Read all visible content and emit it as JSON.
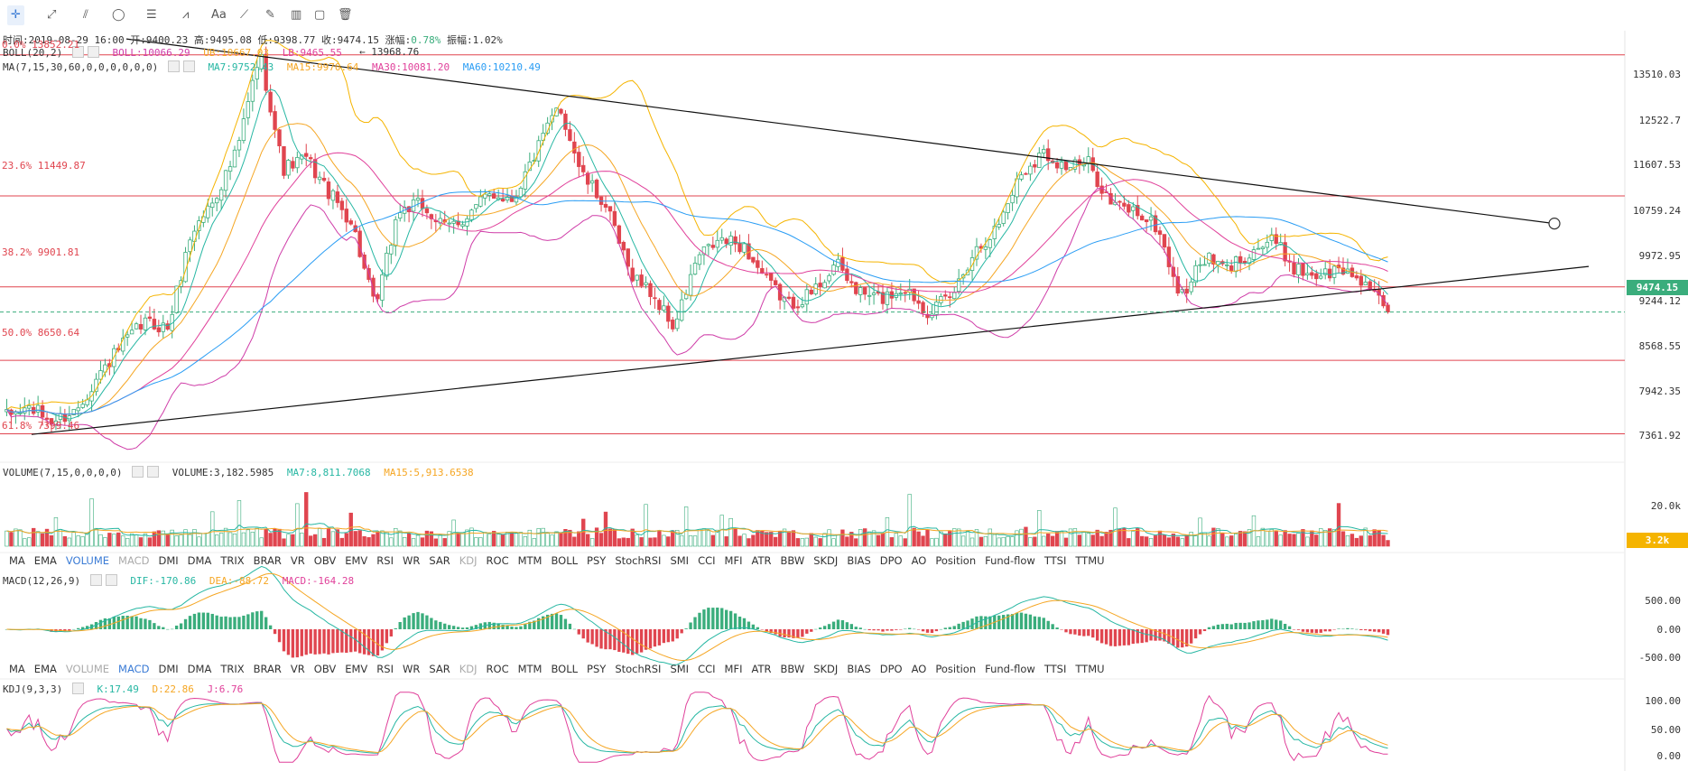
{
  "toolbar": {
    "items": [
      {
        "name": "crosshair-tool",
        "glyph": "✛",
        "active": true
      },
      {
        "name": "trendline-tool",
        "glyph": "⤢",
        "active": false
      },
      {
        "name": "parallel-line-tool",
        "glyph": "⫽",
        "active": false
      },
      {
        "name": "ellipse-tool",
        "glyph": "◯",
        "active": false
      },
      {
        "name": "fib-tool",
        "glyph": "☰",
        "active": false
      },
      {
        "name": "wave-tool",
        "glyph": "⩘",
        "active": false
      },
      {
        "name": "text-tool",
        "glyph": "Aa",
        "active": false
      },
      {
        "name": "ruler-tool",
        "glyph": "⟋",
        "active": false
      },
      {
        "name": "brush-tool",
        "glyph": "✎",
        "active": false
      },
      {
        "name": "measure-tool",
        "glyph": "▥",
        "active": false
      },
      {
        "name": "lock-tool",
        "glyph": "▢",
        "active": false
      },
      {
        "name": "trash-tool",
        "glyph": "🗑",
        "active": false
      }
    ]
  },
  "ohlc": {
    "time_label": "时间:",
    "time": "2019-08-29 16:00",
    "open_label": "开:",
    "open": "9400.23",
    "high_label": "高:",
    "high": "9495.08",
    "low_label": "低:",
    "low": "9398.77",
    "close_label": "收:",
    "close": "9474.15",
    "change_label": "涨幅:",
    "change": "0.78%",
    "amp_label": "振幅:",
    "amp": "1.02%"
  },
  "boll": {
    "label": "BOLL(20,2)",
    "boll": "BOLL:10066.29",
    "ub": "UB:10667.03",
    "lb": "LB:9465.55",
    "top_note": "13968.76"
  },
  "ma": {
    "label": "MA(7,15,30,60,0,0,0,0,0,0)",
    "ma7": "MA7:9752.43",
    "ma15": "MA15:9970.64",
    "ma30": "MA30:10081.20",
    "ma60": "MA60:10210.49"
  },
  "fib": [
    {
      "label": "0.0% 13852.21",
      "price": 13852.21
    },
    {
      "label": "23.6% 11449.87",
      "price": 11449.87
    },
    {
      "label": "38.2% 9901.81",
      "price": 9901.81
    },
    {
      "label": "50.0% 8650.64",
      "price": 8650.64
    },
    {
      "label": "61.8% 7399.46",
      "price": 7399.46
    }
  ],
  "current_price": "9474.15",
  "volume_panel": {
    "label": "VOLUME(7,15,0,0,0,0)",
    "volume": "VOLUME:3,182.5985",
    "ma7": "MA7:8,811.7068",
    "ma15": "MA15:5,913.6538",
    "current": "3.2k"
  },
  "macd_panel": {
    "label": "MACD(12,26,9)",
    "dif": "DIF:-170.86",
    "dea": "DEA:-88.72",
    "macd": "MACD:-164.28"
  },
  "kdj_panel": {
    "label": "KDJ(9,3,3)",
    "k": "K:17.49",
    "d": "D:22.86",
    "j": "J:6.76"
  },
  "indicator_tabs": [
    "MA",
    "EMA",
    "VOLUME",
    "MACD",
    "DMI",
    "DMA",
    "TRIX",
    "BRAR",
    "VR",
    "OBV",
    "EMV",
    "RSI",
    "WR",
    "SAR",
    "KDJ",
    "ROC",
    "MTM",
    "BOLL",
    "PSY",
    "StochRSI",
    "SMI",
    "CCI",
    "MFI",
    "ATR",
    "BBW",
    "SKDJ",
    "BIAS",
    "DPO",
    "AO",
    "Position",
    "Fund-flow",
    "TTSI",
    "TTMU"
  ],
  "tabs_row1_active": "VOLUME",
  "tabs_row2_active": "MACD",
  "tabs_disabled": [
    "MACD",
    "KDJ"
  ],
  "tabs_disabled_row2": [
    "VOLUME",
    "KDJ"
  ],
  "colors": {
    "up": "#3aad7c",
    "down": "#e0454f",
    "ma7": "#27b7a3",
    "ma15": "#f5a623",
    "ma30": "#e0409a",
    "ma60": "#2a9df4",
    "boll_band": "#f5b400",
    "boll_mid": "#cf3da8",
    "fib": "#e0454f",
    "trend": "#111111"
  },
  "chart_data": [
    {
      "type": "candlestick",
      "title": "",
      "y_ticks": [
        13510.03,
        12522.7,
        11607.53,
        10759.24,
        9972.95,
        9244.12,
        8568.55,
        7942.35,
        7361.92
      ],
      "ylim": [
        7330,
        14080
      ],
      "anchor_close": [
        7700,
        7850,
        7600,
        7800,
        8400,
        8900,
        9300,
        9200,
        10800,
        11400,
        12200,
        13900,
        11900,
        12100,
        11500,
        11000,
        9500,
        11200,
        11300,
        10900,
        11100,
        11500,
        11400,
        12200,
        13000,
        11800,
        11300,
        10200,
        9800,
        9200,
        10400,
        10700,
        10600,
        10000,
        9600,
        9800,
        10300,
        9800,
        9700,
        9900,
        9500,
        9700,
        10500,
        10900,
        11800,
        12200,
        11950,
        12000,
        11300,
        11200,
        10900,
        9700,
        10400,
        10200,
        10500,
        10700,
        10200,
        10100,
        10200,
        10000,
        9400
      ],
      "trendline_upper_start_close": 13968.76,
      "trendline_upper_end": 10980,
      "trendline_lower_start": 7390,
      "trendline_lower_end": 10250
    },
    {
      "type": "bar",
      "name": "VOLUME",
      "y_ticks": [
        "20.0k"
      ],
      "current": 3182.5985
    },
    {
      "type": "bar",
      "name": "MACD",
      "y_ticks": [
        "500.00",
        "0.00",
        "-500.00"
      ],
      "dif": -170.86,
      "dea": -88.72,
      "macd": -164.28
    },
    {
      "type": "line",
      "name": "KDJ",
      "y_ticks": [
        "100.00",
        "50.00",
        "0.00"
      ],
      "k": 17.49,
      "d": 22.86,
      "j": 6.76
    }
  ]
}
